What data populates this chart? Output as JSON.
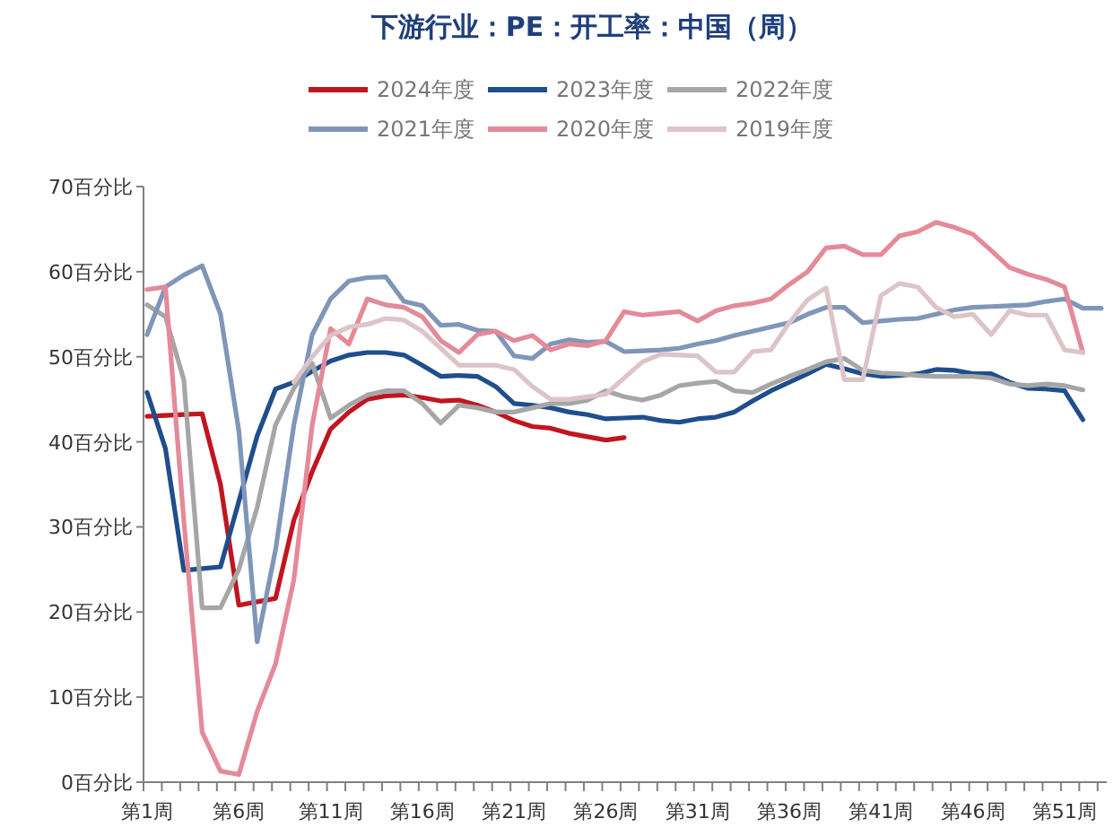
{
  "chart_data": {
    "type": "line",
    "title": "下游行业：PE：开工率：中国（周）",
    "categories": [
      "第1周",
      null,
      null,
      null,
      null,
      "第6周",
      null,
      null,
      null,
      null,
      "第11周",
      null,
      null,
      null,
      null,
      "第16周",
      null,
      null,
      null,
      null,
      "第21周",
      null,
      null,
      null,
      null,
      "第26周",
      null,
      null,
      null,
      null,
      "第31周",
      null,
      null,
      null,
      null,
      "第36周",
      null,
      null,
      null,
      null,
      "第41周",
      null,
      null,
      null,
      null,
      "第46周",
      null,
      null,
      null,
      null,
      "第51周",
      null,
      null
    ],
    "series": [
      {
        "name": "2024年度",
        "color": "#c0161f",
        "values": [
          43,
          43.1,
          43.2,
          43.3,
          35,
          20.8,
          21.2,
          21.6,
          30.8,
          36.5,
          41.5,
          43.5,
          45,
          45.4,
          45.5,
          45.2,
          44.8,
          44.9,
          44.3,
          43.5,
          42.5,
          41.8,
          41.6,
          41,
          40.6,
          40.2,
          40.5,
          null,
          null,
          null,
          null,
          null,
          null,
          null,
          null,
          null,
          null,
          null,
          null,
          null,
          null,
          null,
          null,
          null,
          null,
          null,
          null,
          null,
          null,
          null,
          null,
          null,
          null
        ]
      },
      {
        "name": "2023年度",
        "color": "#1f4e8c",
        "values": [
          45.8,
          39.2,
          24.9,
          25.1,
          25.3,
          33,
          40.7,
          46.2,
          47,
          48.3,
          49.5,
          50.2,
          50.5,
          50.5,
          50.2,
          49,
          47.7,
          47.8,
          47.7,
          46.5,
          44.5,
          44.3,
          44,
          43.5,
          43.2,
          42.7,
          42.8,
          42.9,
          42.5,
          42.3,
          42.7,
          42.9,
          43.5,
          44.8,
          46,
          47,
          48,
          49.1,
          48.6,
          48,
          47.7,
          47.8,
          48,
          48.5,
          48.4,
          48,
          48,
          47,
          46.3,
          46.2,
          46,
          42.6,
          null
        ]
      },
      {
        "name": "2022年度",
        "color": "#a6a6a6",
        "values": [
          56.1,
          54.7,
          47.3,
          20.5,
          20.5,
          25,
          32.3,
          42,
          46.3,
          49.2,
          42.8,
          44.3,
          45.5,
          46,
          46,
          44.5,
          42.2,
          44.3,
          44,
          43.5,
          43.5,
          44,
          44.5,
          44.5,
          44.9,
          46,
          45.3,
          44.9,
          45.5,
          46.6,
          46.9,
          47.1,
          46,
          45.8,
          46.8,
          47.7,
          48.5,
          49.4,
          49.8,
          48.4,
          48.1,
          48,
          47.8,
          47.7,
          47.7,
          47.7,
          47.5,
          46.8,
          46.6,
          46.8,
          46.6,
          46.1,
          null
        ]
      },
      {
        "name": "2021年度",
        "color": "#7f96b8",
        "values": [
          52.6,
          58.2,
          59.6,
          60.7,
          55,
          41.3,
          16.5,
          27.3,
          42,
          52.6,
          56.8,
          58.9,
          59.3,
          59.4,
          56.5,
          56,
          53.7,
          53.8,
          53.1,
          53,
          50.1,
          49.8,
          51.5,
          52,
          51.7,
          51.8,
          50.6,
          50.7,
          50.8,
          51,
          51.5,
          51.9,
          52.5,
          53,
          53.5,
          54,
          55,
          55.8,
          55.8,
          54,
          54.2,
          54.4,
          54.5,
          55,
          55.5,
          55.8,
          55.9,
          56,
          56.1,
          56.5,
          56.8,
          55.7,
          55.7
        ]
      },
      {
        "name": "2020年度",
        "color": "#e48a98",
        "values": [
          57.9,
          58.2,
          30.8,
          5.9,
          1.3,
          0.9,
          8.3,
          13.9,
          23.8,
          42,
          53.3,
          51.5,
          56.8,
          56.1,
          55.8,
          54.7,
          51.9,
          50.5,
          52.6,
          53,
          51.9,
          52.5,
          50.8,
          51.5,
          51.3,
          51.9,
          55.3,
          54.9,
          55.1,
          55.3,
          54.2,
          55.4,
          56,
          56.3,
          56.8,
          58.5,
          60,
          62.8,
          63,
          62,
          62,
          64.2,
          64.7,
          65.8,
          65.2,
          64.4,
          62.5,
          60.5,
          59.7,
          59.1,
          58.2,
          50.5,
          null
        ]
      },
      {
        "name": "2019年度",
        "color": "#dcc4c8",
        "values": [
          null,
          null,
          null,
          null,
          null,
          null,
          null,
          null,
          47,
          50,
          52.5,
          53.5,
          53.8,
          54.5,
          54.3,
          53,
          51,
          49,
          49,
          49,
          48.5,
          46.5,
          45,
          45,
          45.3,
          45.6,
          47.5,
          49.4,
          50.3,
          50.2,
          50.1,
          48.2,
          48.2,
          50.6,
          50.8,
          54,
          56.7,
          58.1,
          47.3,
          47.3,
          57.2,
          58.6,
          58.2,
          55.8,
          54.7,
          55,
          52.6,
          55.4,
          54.9,
          54.9,
          50.8,
          50.5,
          null
        ]
      }
    ],
    "ylim": [
      0,
      70
    ],
    "yticks": [
      {
        "value": 0,
        "label": "0百分比"
      },
      {
        "value": 10,
        "label": "10百分比"
      },
      {
        "value": 20,
        "label": "20百分比"
      },
      {
        "value": 30,
        "label": "30百分比"
      },
      {
        "value": 40,
        "label": "40百分比"
      },
      {
        "value": 50,
        "label": "50百分比"
      },
      {
        "value": 60,
        "label": "60百分比"
      },
      {
        "value": 70,
        "label": "70百分比"
      }
    ],
    "grid": false,
    "legend": "top",
    "marker": "none",
    "line_style": "solid"
  }
}
